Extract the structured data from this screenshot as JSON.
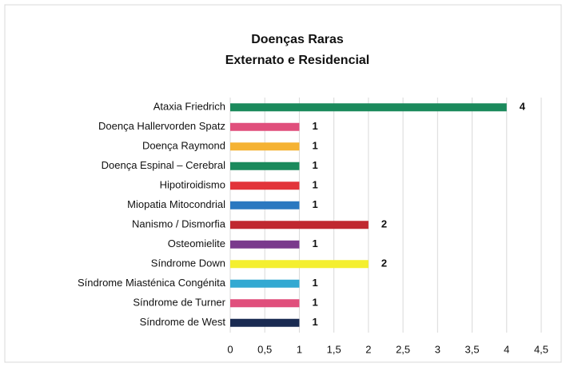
{
  "chart_data": {
    "type": "bar",
    "orientation": "horizontal",
    "title": "Doenças Raras",
    "subtitle": "Externato e Residencial",
    "categories": [
      "Ataxia Friedrich",
      "Doença Hallervorden Spatz",
      "Doença Raymond",
      "Doença Espinal – Cerebral",
      "Hipotiroidismo",
      "Miopatia Mitocondrial",
      "Nanismo / Dismorfia",
      "Osteomielite",
      "Síndrome Down",
      "Síndrome Miasténica Congénita",
      "Síndrome de Turner",
      "Síndrome de West"
    ],
    "values": [
      4,
      1,
      1,
      1,
      1,
      1,
      2,
      1,
      2,
      1,
      1,
      1
    ],
    "colors": [
      "#1b8a5c",
      "#e04f7c",
      "#f5b233",
      "#1b8a5c",
      "#e2343a",
      "#2b78c0",
      "#c0282f",
      "#7a3a8c",
      "#f4ef2f",
      "#33a9d2",
      "#e04f7c",
      "#1a2b52"
    ],
    "xlim": [
      0,
      4.5
    ],
    "xticks": [
      0,
      {
        "value": 0.5,
        "label": "0,5"
      },
      1,
      {
        "value": 1.5,
        "label": "1,5"
      },
      2,
      {
        "value": 2.5,
        "label": "2,5"
      },
      3,
      {
        "value": 3.5,
        "label": "3,5"
      },
      4,
      {
        "value": 4.5,
        "label": "4,5"
      }
    ],
    "grid": true
  }
}
